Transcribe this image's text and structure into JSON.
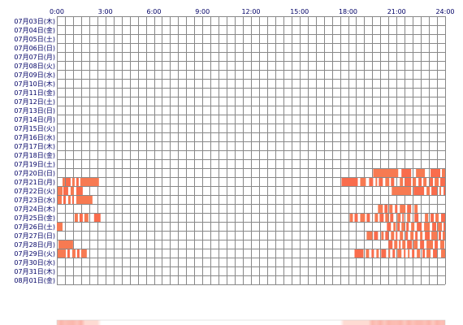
{
  "chart_data": {
    "type": "heatmap",
    "x_ticks": [
      "0:00",
      "3:00",
      "6:00",
      "9:00",
      "12:00",
      "15:00",
      "18:00",
      "21:00",
      "24:00"
    ],
    "x_range_hours": [
      0,
      24
    ],
    "days": [
      "07月03日(木)",
      "07月04日(金)",
      "07月05日(土)",
      "07月06日(日)",
      "07月07日(月)",
      "07月08日(火)",
      "07月09日(水)",
      "07月10日(木)",
      "07月11日(金)",
      "07月12日(土)",
      "07月13日(日)",
      "07月14日(月)",
      "07月15日(火)",
      "07月16日(水)",
      "07月17日(木)",
      "07月18日(金)",
      "07月19日(土)",
      "07月20日(日)",
      "07月21日(月)",
      "07月22日(火)",
      "07月23日(水)",
      "07月24日(木)",
      "07月25日(金)",
      "07月26日(土)",
      "07月27日(日)",
      "07月28日(月)",
      "07月29日(火)",
      "07月30日(水)",
      "07月31日(木)",
      "08月01日(金)"
    ],
    "grid": true,
    "cell_minutes": 30,
    "colors": {
      "activity": "#f77a52",
      "activity_alt": "#f96c4c",
      "grid_line": "#888888",
      "text": "#000066",
      "summary_low": "#fff0ea",
      "summary_high": "#fbb3a8"
    },
    "activity": [
      {
        "day": "07月20日(日)",
        "intervals": [
          [
            19.55,
            21.1
          ],
          [
            21.3,
            21.9
          ],
          [
            22.2,
            22.75
          ],
          [
            23.1,
            23.7
          ],
          [
            23.8,
            24.0
          ]
        ]
      },
      {
        "day": "07月21日(月)",
        "intervals": [
          [
            0.35,
            0.5
          ],
          [
            0.55,
            0.85
          ],
          [
            0.95,
            1.1
          ],
          [
            1.2,
            1.35
          ],
          [
            1.45,
            2.6
          ],
          [
            17.6,
            18.6
          ],
          [
            18.75,
            19.1
          ],
          [
            19.3,
            19.55
          ],
          [
            19.7,
            19.8
          ],
          [
            19.9,
            20.15
          ],
          [
            20.3,
            20.55
          ],
          [
            20.65,
            20.85
          ],
          [
            21.2,
            21.4
          ],
          [
            21.5,
            21.9
          ],
          [
            22.0,
            22.2
          ],
          [
            22.35,
            22.55
          ],
          [
            22.65,
            22.85
          ],
          [
            23.05,
            23.25
          ],
          [
            23.35,
            23.6
          ],
          [
            23.7,
            24.0
          ]
        ]
      },
      {
        "day": "07月22日(火)",
        "intervals": [
          [
            0.05,
            0.35
          ],
          [
            0.4,
            0.7
          ],
          [
            0.85,
            1.05
          ],
          [
            1.2,
            1.6
          ],
          [
            20.7,
            21.9
          ],
          [
            22.05,
            22.7
          ],
          [
            22.85,
            23.05
          ],
          [
            23.15,
            23.5
          ],
          [
            23.65,
            23.75
          ],
          [
            23.9,
            24.0
          ]
        ]
      },
      {
        "day": "07月23日(水)",
        "intervals": [
          [
            0.05,
            0.3
          ],
          [
            0.4,
            0.55
          ],
          [
            0.7,
            0.85
          ],
          [
            0.95,
            1.05
          ],
          [
            1.2,
            2.2
          ]
        ]
      },
      {
        "day": "07月24日(木)",
        "intervals": [
          [
            19.85,
            20.15
          ],
          [
            20.25,
            20.45
          ],
          [
            20.55,
            20.75
          ],
          [
            20.9,
            21.05
          ],
          [
            21.2,
            21.55
          ],
          [
            21.65,
            21.9
          ],
          [
            22.1,
            22.3
          ]
        ]
      },
      {
        "day": "07月25日(金)",
        "intervals": [
          [
            1.1,
            1.3
          ],
          [
            1.4,
            1.6
          ],
          [
            1.7,
            1.95
          ],
          [
            2.3,
            2.7
          ],
          [
            18.1,
            18.3
          ],
          [
            18.4,
            18.6
          ],
          [
            18.75,
            19.05
          ],
          [
            19.15,
            19.35
          ],
          [
            19.65,
            19.85
          ],
          [
            19.95,
            20.2
          ],
          [
            20.3,
            20.5
          ],
          [
            20.6,
            20.8
          ],
          [
            21.05,
            21.25
          ],
          [
            21.35,
            21.45
          ],
          [
            21.65,
            21.85
          ],
          [
            22.1,
            22.35
          ],
          [
            22.75,
            22.95
          ],
          [
            23.1,
            23.3
          ],
          [
            23.4,
            23.6
          ],
          [
            23.75,
            24.0
          ]
        ]
      },
      {
        "day": "07月26日(土)",
        "intervals": [
          [
            0.0,
            0.35
          ],
          [
            20.4,
            20.65
          ],
          [
            20.8,
            20.95
          ],
          [
            21.05,
            21.2
          ],
          [
            21.3,
            21.5
          ],
          [
            21.6,
            21.75
          ],
          [
            21.9,
            22.1
          ],
          [
            22.25,
            22.55
          ],
          [
            22.7,
            23.05
          ],
          [
            23.2,
            23.45
          ],
          [
            23.55,
            23.8
          ],
          [
            23.9,
            24.0
          ]
        ]
      },
      {
        "day": "07月27日(日)",
        "intervals": [
          [
            19.15,
            19.5
          ],
          [
            19.6,
            19.85
          ],
          [
            20.05,
            20.2
          ],
          [
            20.3,
            20.5
          ],
          [
            20.65,
            20.85
          ],
          [
            20.95,
            21.05
          ],
          [
            21.2,
            21.4
          ],
          [
            21.55,
            21.7
          ],
          [
            21.85,
            22.05
          ],
          [
            22.15,
            22.3
          ],
          [
            22.45,
            22.6
          ],
          [
            22.75,
            23.05
          ],
          [
            23.15,
            23.5
          ],
          [
            23.6,
            23.75
          ],
          [
            23.85,
            24.0
          ]
        ]
      },
      {
        "day": "07月28日(月)",
        "intervals": [
          [
            0.1,
            1.0
          ],
          [
            20.5,
            20.75
          ],
          [
            20.85,
            21.05
          ],
          [
            21.15,
            21.25
          ],
          [
            21.35,
            21.55
          ],
          [
            21.65,
            21.95
          ],
          [
            22.05,
            22.3
          ],
          [
            22.45,
            22.7
          ],
          [
            22.85,
            23.25
          ],
          [
            23.35,
            23.55
          ],
          [
            23.7,
            23.95
          ]
        ]
      },
      {
        "day": "07月29日(火)",
        "intervals": [
          [
            0.05,
            0.55
          ],
          [
            0.65,
            0.8
          ],
          [
            0.95,
            1.15
          ],
          [
            1.25,
            1.4
          ],
          [
            1.5,
            1.85
          ],
          [
            18.4,
            18.95
          ],
          [
            19.1,
            19.3
          ],
          [
            19.45,
            19.6
          ],
          [
            19.75,
            19.9
          ],
          [
            20.05,
            20.35
          ],
          [
            20.5,
            20.6
          ],
          [
            20.75,
            20.9
          ],
          [
            21.05,
            21.3
          ],
          [
            21.45,
            21.55
          ],
          [
            21.7,
            21.8
          ],
          [
            21.95,
            22.1
          ],
          [
            22.25,
            22.45
          ],
          [
            22.6,
            22.75
          ],
          [
            22.85,
            23.1
          ],
          [
            23.25,
            23.5
          ],
          [
            23.75,
            24.0
          ]
        ]
      }
    ],
    "summary_bar": {
      "active_ranges": [
        [
          0.0,
          2.7
        ],
        [
          17.6,
          24.0
        ]
      ],
      "peak_ranges": [
        [
          19.5,
          24.0
        ],
        [
          0.0,
          1.6
        ]
      ]
    }
  }
}
